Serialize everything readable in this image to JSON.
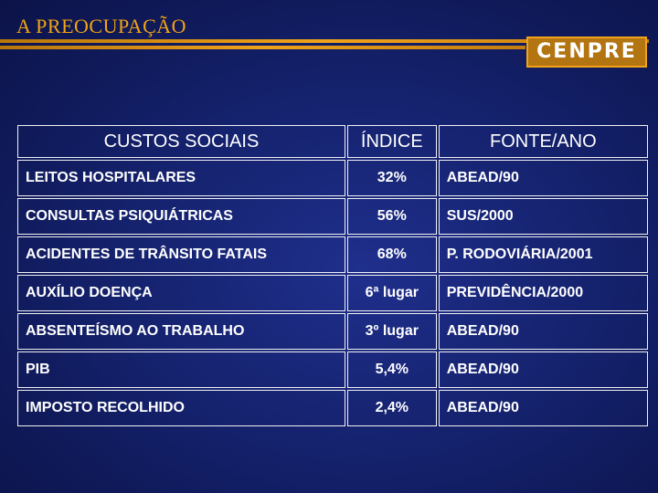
{
  "slide": {
    "title": "A PREOCUPAÇÃO"
  },
  "logo": {
    "text": "CENPRE"
  },
  "table": {
    "headers": [
      "CUSTOS SOCIAIS",
      "ÍNDICE",
      "FONTE/ANO"
    ],
    "rows": [
      [
        "LEITOS HOSPITALARES",
        "32%",
        "ABEAD/90"
      ],
      [
        "CONSULTAS PSIQUIÁTRICAS",
        "56%",
        "SUS/2000"
      ],
      [
        "ACIDENTES  DE TRÂNSITO FATAIS",
        "68%",
        "P. RODOVIÁRIA/2001"
      ],
      [
        "AUXÍLIO DOENÇA",
        "6ª lugar",
        "PREVIDÊNCIA/2000"
      ],
      [
        "ABSENTEÍSMO AO TRABALHO",
        "3º lugar",
        "ABEAD/90"
      ],
      [
        "PIB",
        "5,4%",
        "ABEAD/90"
      ],
      [
        "IMPOSTO RECOLHIDO",
        "2,4%",
        "ABEAD/90"
      ]
    ]
  },
  "colors": {
    "title": "#f2a313",
    "background": "#15226e",
    "accent": "#f0a21a",
    "text": "#ffffff"
  }
}
